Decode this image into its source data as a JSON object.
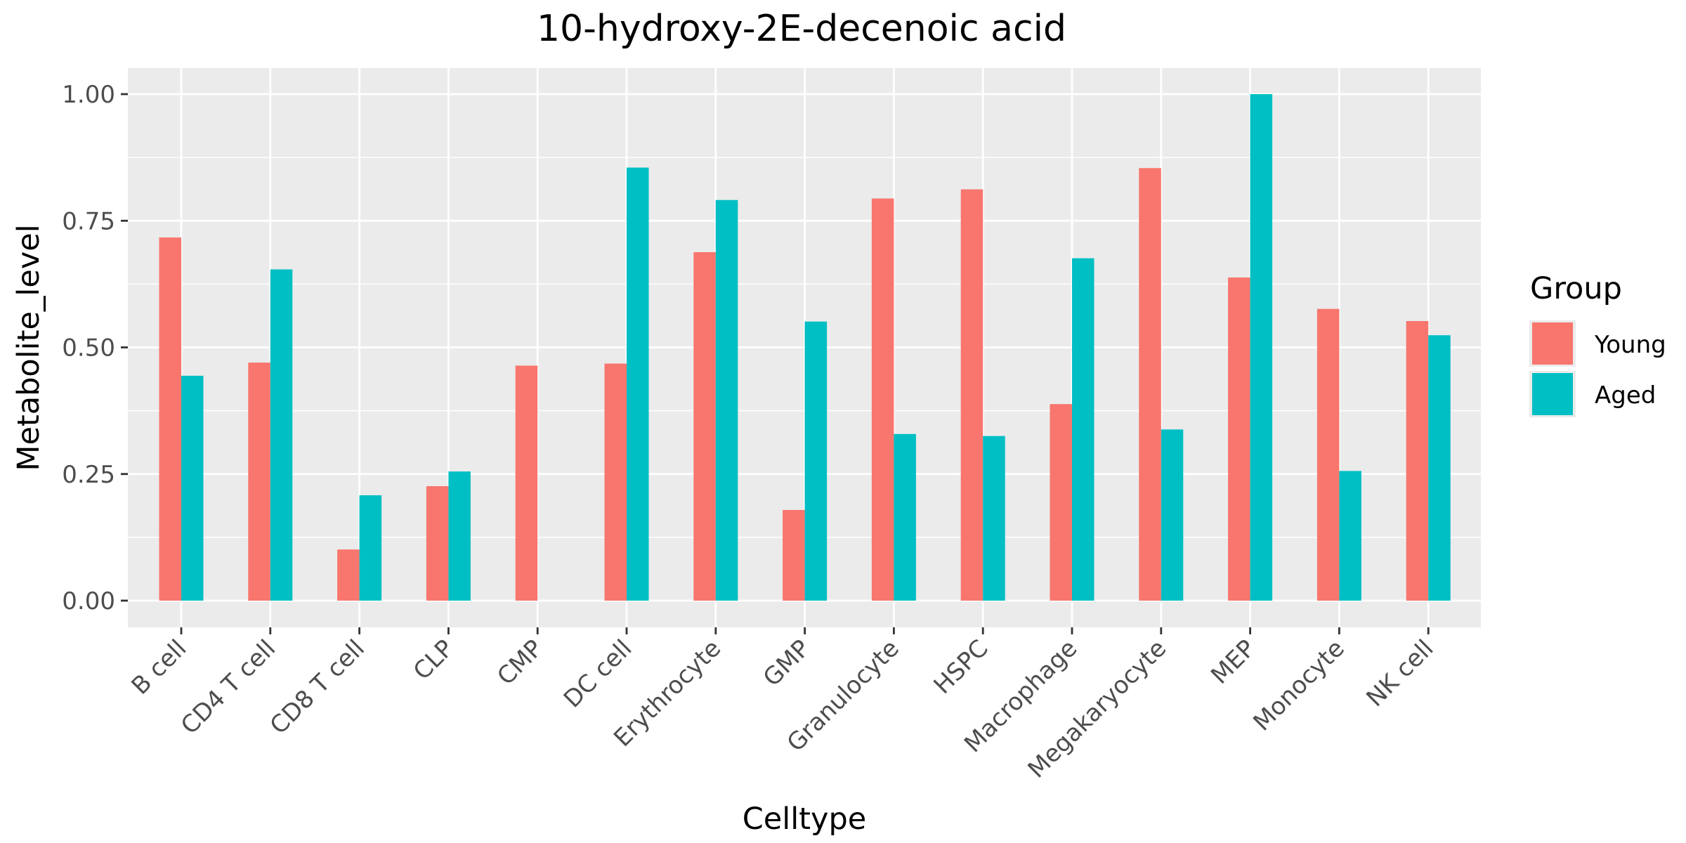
{
  "chart_data": {
    "type": "bar",
    "title": "10-hydroxy-2E-decenoic acid",
    "xlabel": "Celltype",
    "ylabel": "Metabolite_level",
    "categories": [
      "B cell",
      "CD4 T cell",
      "CD8 T cell",
      "CLP",
      "CMP",
      "DC cell",
      "Erythrocyte",
      "GMP",
      "Granulocyte",
      "HSPC",
      "Macrophage",
      "Megakaryocyte",
      "MEP",
      "Monocyte",
      "NK cell"
    ],
    "series": [
      {
        "name": "Young",
        "color": "#F8766D",
        "values": [
          0.717,
          0.47,
          0.101,
          0.226,
          0.464,
          0.468,
          0.688,
          0.179,
          0.794,
          0.812,
          0.388,
          0.854,
          0.638,
          0.576,
          0.552
        ]
      },
      {
        "name": "Aged",
        "color": "#00BFC4",
        "values": [
          0.444,
          0.654,
          0.208,
          0.255,
          0.0,
          0.855,
          0.791,
          0.551,
          0.329,
          0.325,
          0.676,
          0.338,
          1.0,
          0.256,
          0.524
        ]
      }
    ],
    "ylim": [
      0,
      1.0
    ],
    "yticks": [
      "0.00",
      "0.25",
      "0.50",
      "0.75",
      "1.00"
    ],
    "legend": {
      "title": "Group",
      "position": "right"
    },
    "grid": true
  }
}
